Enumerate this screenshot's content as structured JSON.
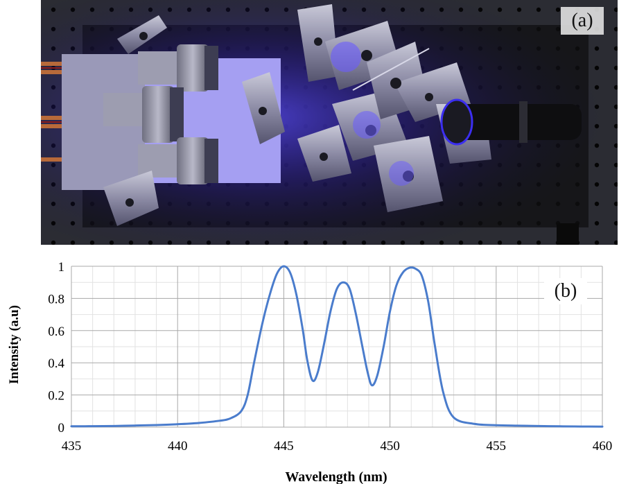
{
  "panels": {
    "a_label": "(a)",
    "b_label": "(b)"
  },
  "photo": {
    "description_icon": "photo-optical-setup",
    "dominant_color": "#3a2cff",
    "board_color": "#1b1b1f"
  },
  "chart_data": {
    "type": "line",
    "title": "",
    "xlabel": "Wavelength (nm)",
    "ylabel": "Intensity (a.u)",
    "xlim": [
      435,
      460
    ],
    "ylim": [
      0,
      1
    ],
    "x_ticks": [
      435,
      440,
      445,
      450,
      455,
      460
    ],
    "y_ticks": [
      0,
      0.2,
      0.4,
      0.6,
      0.8,
      1
    ],
    "y_tick_labels": [
      "0",
      "0.2",
      "0.4",
      "0.6",
      "0.8",
      "1"
    ],
    "grid": true,
    "line_color": "#4a7ccc",
    "series": [
      {
        "x": [
          435,
          436,
          437,
          438,
          439,
          440,
          441,
          442,
          442.5,
          443,
          443.3,
          443.6,
          444,
          444.4,
          444.7,
          445,
          445.3,
          445.6,
          445.9,
          446.1,
          446.35,
          446.6,
          446.9,
          447.2,
          447.5,
          447.8,
          448.1,
          448.4,
          448.7,
          448.95,
          449.15,
          449.4,
          449.7,
          450,
          450.3,
          450.6,
          450.9,
          451.2,
          451.5,
          451.8,
          452.1,
          452.5,
          453,
          454,
          455,
          456,
          457,
          458,
          459,
          460
        ],
        "y": [
          0.005,
          0.006,
          0.007,
          0.01,
          0.013,
          0.018,
          0.026,
          0.04,
          0.055,
          0.1,
          0.2,
          0.4,
          0.65,
          0.85,
          0.96,
          1.0,
          0.96,
          0.82,
          0.6,
          0.42,
          0.29,
          0.34,
          0.52,
          0.72,
          0.86,
          0.9,
          0.86,
          0.7,
          0.5,
          0.34,
          0.26,
          0.32,
          0.5,
          0.72,
          0.88,
          0.96,
          0.99,
          0.985,
          0.94,
          0.78,
          0.52,
          0.22,
          0.06,
          0.02,
          0.012,
          0.009,
          0.007,
          0.005,
          0.004,
          0.003
        ]
      }
    ]
  }
}
